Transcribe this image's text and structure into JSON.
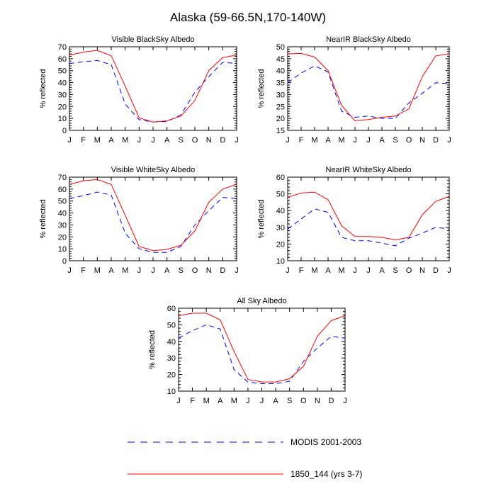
{
  "title": "Alaska (59-66.5N,170-140W)",
  "colors": {
    "modis": "#0000ff",
    "model": "#ff0000"
  },
  "legend": [
    {
      "key": "modis",
      "label": "MODIS 2001-2003",
      "style": "dashed"
    },
    {
      "key": "model",
      "label": "1850_144 (yrs 3-7)",
      "style": "solid"
    }
  ],
  "chart_data": [
    {
      "type": "line",
      "title": "Visible BlackSky Albedo",
      "xlabel": "",
      "ylabel": "% reflected",
      "categories": [
        "J",
        "F",
        "M",
        "A",
        "M",
        "J",
        "J",
        "A",
        "S",
        "O",
        "N",
        "D",
        "J"
      ],
      "ylim": [
        0,
        70
      ],
      "yticks": [
        0,
        10,
        20,
        30,
        40,
        50,
        60,
        70
      ],
      "grid": false,
      "series": [
        {
          "key": "modis",
          "values": [
            56,
            57.5,
            58.5,
            55,
            22,
            9,
            7,
            7.5,
            13,
            32,
            45,
            57,
            56
          ]
        },
        {
          "key": "model",
          "values": [
            63,
            65.5,
            67,
            62.5,
            37,
            10.5,
            7,
            8,
            12,
            25,
            50,
            61,
            63
          ]
        }
      ]
    },
    {
      "type": "line",
      "title": "NearIR BlackSky Albedo",
      "xlabel": "",
      "ylabel": "% reflected",
      "categories": [
        "J",
        "F",
        "M",
        "A",
        "M",
        "J",
        "J",
        "A",
        "S",
        "O",
        "N",
        "D",
        "J"
      ],
      "ylim": [
        15,
        50
      ],
      "yticks": [
        15,
        20,
        25,
        30,
        35,
        40,
        45,
        50
      ],
      "grid": false,
      "series": [
        {
          "key": "modis",
          "values": [
            35,
            39,
            42,
            39.5,
            23,
            20.5,
            21,
            20,
            20,
            26.5,
            30.5,
            35,
            34.5
          ]
        },
        {
          "key": "model",
          "values": [
            47,
            47.2,
            45.7,
            40,
            25.5,
            19,
            19.5,
            20.5,
            21,
            24,
            37.5,
            46.2,
            47
          ]
        }
      ]
    },
    {
      "type": "line",
      "title": "Visible WhiteSky Albedo",
      "xlabel": "",
      "ylabel": "% reflected",
      "categories": [
        "J",
        "F",
        "M",
        "A",
        "M",
        "J",
        "J",
        "A",
        "S",
        "O",
        "N",
        "D",
        "J"
      ],
      "ylim": [
        0,
        70
      ],
      "yticks": [
        0,
        10,
        20,
        30,
        40,
        50,
        60,
        70
      ],
      "grid": false,
      "series": [
        {
          "key": "modis",
          "values": [
            52,
            54.5,
            57.5,
            55,
            23,
            10,
            7,
            7,
            12,
            30,
            42,
            53,
            52
          ]
        },
        {
          "key": "model",
          "values": [
            64,
            67,
            68,
            64,
            38,
            12,
            8.5,
            9.5,
            13,
            25,
            49,
            60,
            64
          ]
        }
      ]
    },
    {
      "type": "line",
      "title": "NearIR WhiteSky Albedo",
      "xlabel": "",
      "ylabel": "% reflected",
      "categories": [
        "J",
        "F",
        "M",
        "A",
        "M",
        "J",
        "J",
        "A",
        "S",
        "O",
        "N",
        "D",
        "J"
      ],
      "ylim": [
        10,
        60
      ],
      "yticks": [
        10,
        20,
        30,
        40,
        50,
        60
      ],
      "grid": false,
      "series": [
        {
          "key": "modis",
          "values": [
            29,
            35,
            41,
            39,
            24,
            22,
            22,
            20.5,
            19,
            23.5,
            26.5,
            30,
            29
          ]
        },
        {
          "key": "model",
          "values": [
            48,
            50.5,
            51,
            46.5,
            31,
            24.5,
            24.5,
            24,
            22.5,
            24,
            37.5,
            45.5,
            48.5
          ]
        }
      ]
    },
    {
      "type": "line",
      "title": "All Sky Albedo",
      "xlabel": "",
      "ylabel": "% reflected",
      "categories": [
        "J",
        "F",
        "M",
        "A",
        "M",
        "J",
        "J",
        "A",
        "S",
        "O",
        "N",
        "D",
        "J"
      ],
      "ylim": [
        10,
        60
      ],
      "yticks": [
        10,
        20,
        30,
        40,
        50,
        60
      ],
      "grid": false,
      "series": [
        {
          "key": "modis",
          "values": [
            42,
            46.5,
            50,
            47.5,
            23,
            15.5,
            14.5,
            14.5,
            16,
            28,
            36,
            43,
            42
          ]
        },
        {
          "key": "model",
          "values": [
            55.5,
            57,
            57,
            53,
            34,
            17,
            15.5,
            15.5,
            17.5,
            25,
            43,
            52.5,
            55.5
          ]
        }
      ]
    }
  ]
}
